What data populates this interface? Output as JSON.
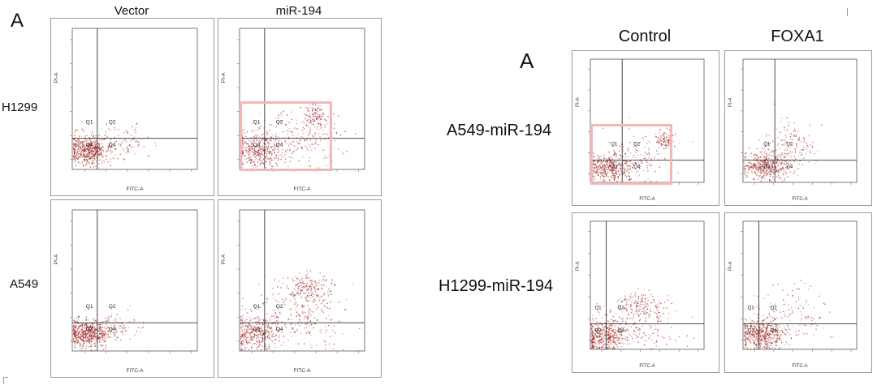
{
  "left_figure": {
    "label": "A",
    "columns": [
      "Vector",
      "miR-194"
    ],
    "rows": [
      "H1299",
      "A549"
    ],
    "x_axis_label": "FITC-A",
    "y_axis_label": "PI-A",
    "quadrants": [
      "Q1",
      "Q2",
      "Q3",
      "Q4"
    ]
  },
  "right_figure": {
    "label": "A",
    "columns": [
      "Control",
      "FOXA1"
    ],
    "rows": [
      "A549-miR-194",
      "H1299-miR-194"
    ],
    "x_axis_label": "FITC-A",
    "y_axis_label": "PI-A",
    "quadrants": [
      "Q1",
      "Q2",
      "Q3",
      "Q4"
    ]
  },
  "dot_color": "#a83232",
  "highlight_color": "#f2b8b8"
}
